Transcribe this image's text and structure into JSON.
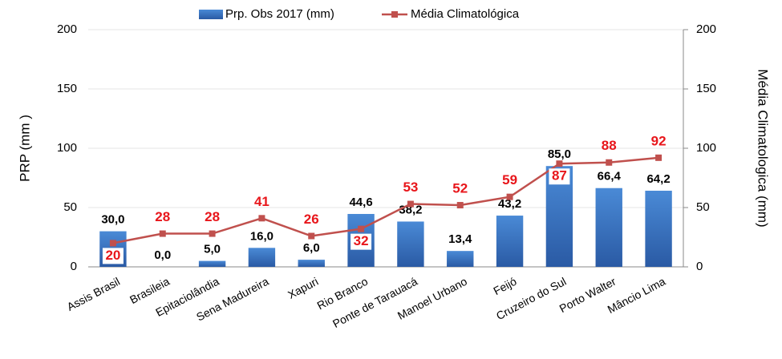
{
  "chart_data": {
    "type": "bar_line",
    "categories": [
      "Assis Brasil",
      "Brasileia",
      "Epitaciolândia",
      "Sena Madureira",
      "Xapuri",
      "Rio Branco",
      "Ponte de Tarauacá",
      "Manoel Urbano",
      "Feijó",
      "Cruzeiro do Sul",
      "Porto Walter",
      "Mâncio Lima"
    ],
    "series": [
      {
        "name": "Prp. Obs 2017 (mm)",
        "color": "#3a72c0",
        "type": "bar",
        "values": [
          30.0,
          0.0,
          5.0,
          16.0,
          6.0,
          44.6,
          38.2,
          13.4,
          43.2,
          85.0,
          66.4,
          64.2
        ],
        "value_labels": [
          "30,0",
          "0,0",
          "5,0",
          "16,0",
          "6,0",
          "44,6",
          "38,2",
          "13,4",
          "43,2",
          "85,0",
          "66,4",
          "64,2"
        ]
      },
      {
        "name": "Média Climatológica",
        "color": "#c0504d",
        "type": "line",
        "axis": "y2",
        "values": [
          20,
          28,
          28,
          41,
          26,
          32,
          53,
          52,
          59,
          87,
          88,
          92
        ]
      }
    ],
    "y_label": "PRP (mm )",
    "y2_label": "Média Climatologica  (mm)",
    "ylim": [
      0,
      200
    ],
    "yticks": [
      0,
      50,
      100,
      150,
      200
    ],
    "y2lim": [
      0,
      200
    ],
    "y2ticks": [
      0,
      50,
      100,
      150,
      200
    ],
    "grid": true,
    "legend": "top"
  }
}
